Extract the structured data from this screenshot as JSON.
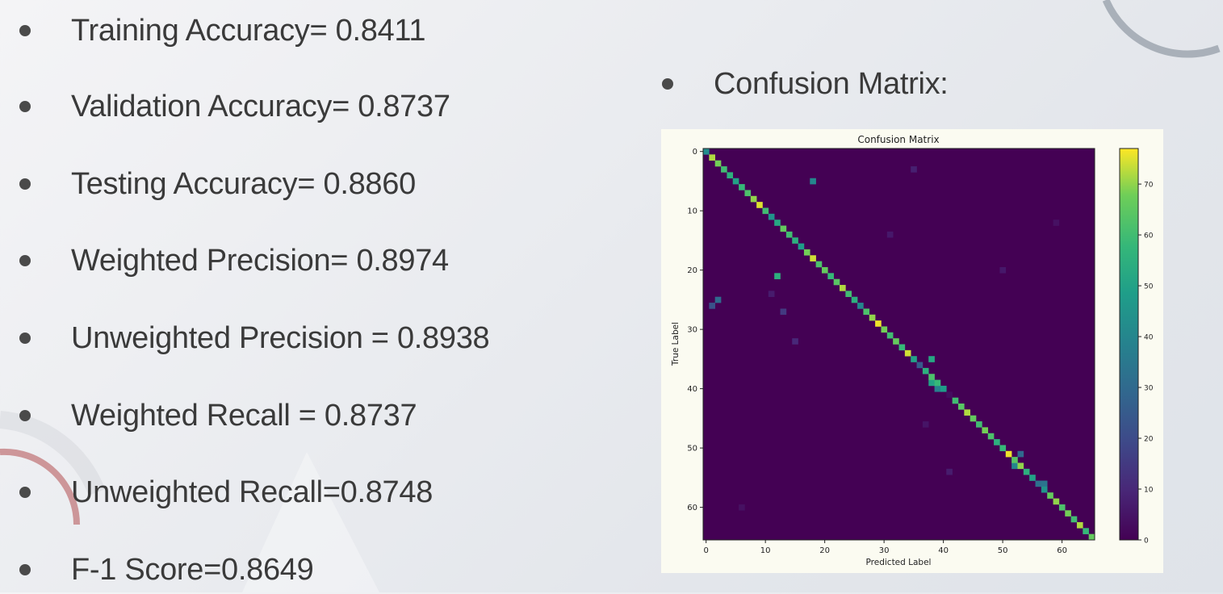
{
  "metrics": [
    {
      "label": "Training Accuracy= 0.8411"
    },
    {
      "label": "Validation Accuracy= 0.8737"
    },
    {
      "label": "Testing Accuracy= 0.8860"
    },
    {
      "label": "Weighted Precision= 0.8974"
    },
    {
      "label": "Unweighted Precision = 0.8938"
    },
    {
      "label": "Weighted Recall = 0.8737"
    },
    {
      "label": "Unweighted Recall=0.8748"
    },
    {
      "label": "F-1 Score=0.8649"
    }
  ],
  "confusion_heading": "Confusion Matrix:",
  "colors": {
    "text": "#3a3a3a",
    "bullet": "#4a4a4a",
    "deco_arc": "#c7868a",
    "deco_gray": "#9aa3ad"
  },
  "chart_data": {
    "type": "heatmap",
    "title": "Confusion Matrix",
    "xlabel": "Predicted Label",
    "ylabel": "True Label",
    "size": 66,
    "x_ticks": [
      0,
      10,
      20,
      30,
      40,
      50,
      60
    ],
    "y_ticks": [
      0,
      10,
      20,
      30,
      40,
      50,
      60
    ],
    "colorbar_ticks": [
      0,
      10,
      20,
      30,
      40,
      50,
      60,
      70
    ],
    "vmin": 0,
    "vmax": 77,
    "colormap": "viridis",
    "diagonal": [
      {
        "i": 0,
        "v": 42
      },
      {
        "i": 1,
        "v": 72
      },
      {
        "i": 2,
        "v": 68
      },
      {
        "i": 3,
        "v": 60
      },
      {
        "i": 4,
        "v": 55
      },
      {
        "i": 5,
        "v": 50
      },
      {
        "i": 6,
        "v": 58
      },
      {
        "i": 7,
        "v": 62
      },
      {
        "i": 8,
        "v": 70
      },
      {
        "i": 9,
        "v": 75
      },
      {
        "i": 10,
        "v": 60
      },
      {
        "i": 11,
        "v": 45
      },
      {
        "i": 12,
        "v": 52
      },
      {
        "i": 13,
        "v": 66
      },
      {
        "i": 14,
        "v": 60
      },
      {
        "i": 15,
        "v": 55
      },
      {
        "i": 16,
        "v": 48
      },
      {
        "i": 17,
        "v": 68
      },
      {
        "i": 18,
        "v": 74
      },
      {
        "i": 19,
        "v": 62
      },
      {
        "i": 20,
        "v": 66
      },
      {
        "i": 21,
        "v": 58
      },
      {
        "i": 22,
        "v": 64
      },
      {
        "i": 23,
        "v": 72
      },
      {
        "i": 24,
        "v": 60
      },
      {
        "i": 25,
        "v": 55
      },
      {
        "i": 26,
        "v": 40
      },
      {
        "i": 27,
        "v": 62
      },
      {
        "i": 28,
        "v": 70
      },
      {
        "i": 29,
        "v": 76
      },
      {
        "i": 30,
        "v": 68
      },
      {
        "i": 31,
        "v": 60
      },
      {
        "i": 32,
        "v": 66
      },
      {
        "i": 33,
        "v": 58
      },
      {
        "i": 34,
        "v": 74
      },
      {
        "i": 35,
        "v": 50
      },
      {
        "i": 36,
        "v": 25
      },
      {
        "i": 37,
        "v": 55
      },
      {
        "i": 38,
        "v": 62
      },
      {
        "i": 39,
        "v": 58
      },
      {
        "i": 40,
        "v": 48
      },
      {
        "i": 41,
        "v": 3
      },
      {
        "i": 42,
        "v": 60
      },
      {
        "i": 43,
        "v": 64
      },
      {
        "i": 44,
        "v": 72
      },
      {
        "i": 45,
        "v": 66
      },
      {
        "i": 46,
        "v": 60
      },
      {
        "i": 47,
        "v": 68
      },
      {
        "i": 48,
        "v": 62
      },
      {
        "i": 49,
        "v": 55
      },
      {
        "i": 50,
        "v": 58
      },
      {
        "i": 51,
        "v": 76
      },
      {
        "i": 52,
        "v": 64
      },
      {
        "i": 53,
        "v": 70
      },
      {
        "i": 54,
        "v": 55
      },
      {
        "i": 55,
        "v": 50
      },
      {
        "i": 56,
        "v": 32
      },
      {
        "i": 57,
        "v": 45
      },
      {
        "i": 58,
        "v": 66
      },
      {
        "i": 59,
        "v": 70
      },
      {
        "i": 60,
        "v": 62
      },
      {
        "i": 61,
        "v": 68
      },
      {
        "i": 62,
        "v": 60
      },
      {
        "i": 63,
        "v": 72
      },
      {
        "i": 64,
        "v": 58
      },
      {
        "i": 65,
        "v": 66
      }
    ],
    "off_diagonal": [
      {
        "r": 5,
        "c": 18,
        "v": 40
      },
      {
        "r": 21,
        "c": 12,
        "v": 55
      },
      {
        "r": 25,
        "c": 2,
        "v": 30
      },
      {
        "r": 26,
        "c": 1,
        "v": 22
      },
      {
        "r": 27,
        "c": 13,
        "v": 15
      },
      {
        "r": 32,
        "c": 15,
        "v": 10
      },
      {
        "r": 35,
        "c": 38,
        "v": 52
      },
      {
        "r": 39,
        "c": 38,
        "v": 50
      },
      {
        "r": 40,
        "c": 39,
        "v": 38
      },
      {
        "r": 51,
        "c": 53,
        "v": 30
      },
      {
        "r": 53,
        "c": 52,
        "v": 40
      },
      {
        "r": 56,
        "c": 57,
        "v": 34
      },
      {
        "r": 3,
        "c": 35,
        "v": 8
      },
      {
        "r": 14,
        "c": 31,
        "v": 6
      },
      {
        "r": 24,
        "c": 11,
        "v": 7
      },
      {
        "r": 46,
        "c": 37,
        "v": 5
      },
      {
        "r": 20,
        "c": 50,
        "v": 6
      },
      {
        "r": 54,
        "c": 41,
        "v": 7
      },
      {
        "r": 12,
        "c": 59,
        "v": 4
      },
      {
        "r": 60,
        "c": 6,
        "v": 4
      }
    ]
  }
}
